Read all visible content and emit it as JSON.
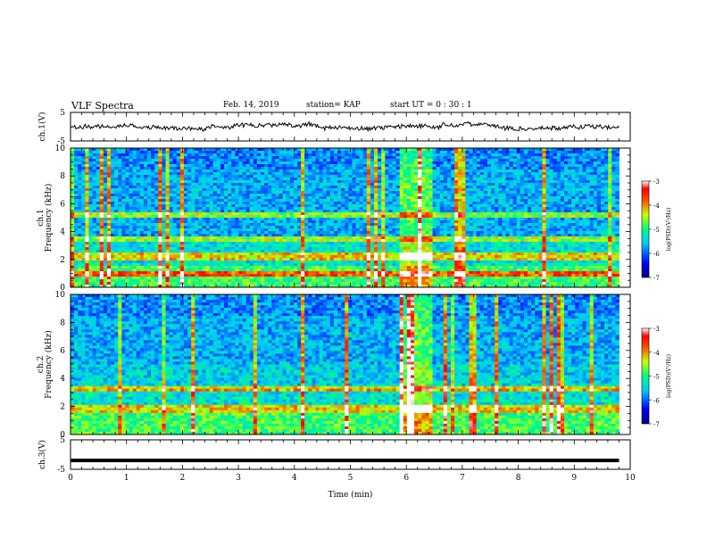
{
  "header": {
    "title": "VLF Spectra",
    "date": "Feb. 14, 2019",
    "station": "station= KAP",
    "start": "start  UT =   0 : 30 : 1"
  },
  "chart_data": [
    {
      "type": "line",
      "panel": "ch1-waveform",
      "ylabel": "ch.1(V)",
      "ylim": [
        -5,
        5
      ],
      "yticks": [
        "5",
        "-5"
      ],
      "color": "#000000",
      "note_series": "noisy envelope around 0 V, approx. range -2 to +3 V over 0–9.8 min"
    },
    {
      "type": "heatmap",
      "panel": "ch1-spectrogram",
      "ylabel": "ch.1",
      "ylabel2": "Frequency (kHz)",
      "ylim": [
        0,
        10
      ],
      "yticks": [
        "0",
        "2",
        "4",
        "6",
        "8",
        "10"
      ],
      "xlim": [
        0,
        10
      ],
      "data_end_min": 9.8,
      "features": [
        {
          "type": "band",
          "freq_khz": 2.2,
          "note": "strong persistent line"
        },
        {
          "type": "band",
          "freq_khz": 0.9
        },
        {
          "type": "band",
          "freq_khz": 3.5
        },
        {
          "type": "band",
          "freq_khz": 5.2
        },
        {
          "type": "burst",
          "t_start_min": 5.9,
          "t_end_min": 6.5,
          "note": "broadband enhancement"
        }
      ],
      "colorbar": {
        "label": "log(PSD)(V²/Hz)",
        "range": [
          -7,
          -3
        ],
        "ticks": [
          "-3",
          "-4",
          "-5",
          "-6",
          "-7"
        ]
      }
    },
    {
      "type": "heatmap",
      "panel": "ch2-spectrogram",
      "ylabel": "ch.2",
      "ylabel2": "Frequency (kHz)",
      "ylim": [
        0,
        10
      ],
      "yticks": [
        "0",
        "2",
        "4",
        "6",
        "8",
        "10"
      ],
      "xlim": [
        0,
        10
      ],
      "data_end_min": 9.8,
      "features": [
        {
          "type": "band",
          "freq_khz": 1.8
        },
        {
          "type": "band",
          "freq_khz": 3.3
        },
        {
          "type": "burst",
          "t_start_min": 5.9,
          "t_end_min": 6.5
        }
      ],
      "colorbar": {
        "label": "log(PSD)(V²/Hz)",
        "range": [
          -7,
          -3
        ],
        "ticks": [
          "-3",
          "-4",
          "-5",
          "-6",
          "-7"
        ]
      }
    },
    {
      "type": "line",
      "panel": "ch3-waveform",
      "ylabel": "ch.3(V)",
      "ylim": [
        -5,
        5
      ],
      "yticks": [
        "5",
        "-5"
      ],
      "x": [
        0,
        9.8
      ],
      "y": [
        -2,
        -2
      ],
      "xlabel": "Time  (min)",
      "xlim": [
        0,
        10
      ],
      "xticks": [
        "0",
        "1",
        "2",
        "3",
        "4",
        "5",
        "6",
        "7",
        "8",
        "9",
        "10"
      ]
    }
  ]
}
